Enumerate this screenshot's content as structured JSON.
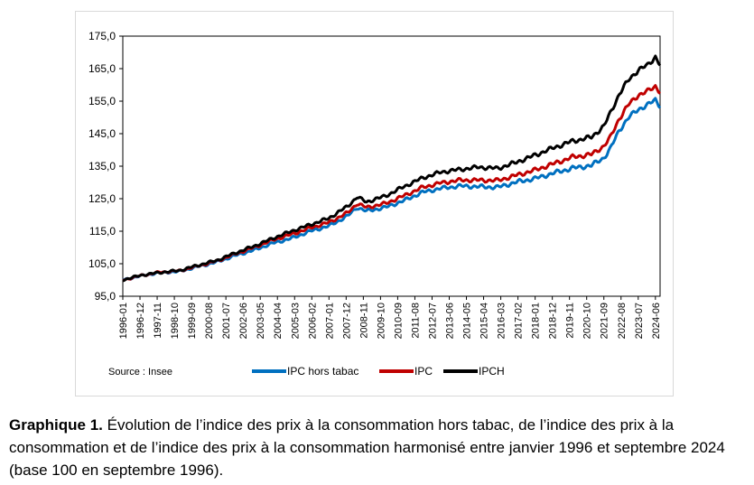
{
  "chart_data": {
    "type": "line",
    "ylim": [
      95,
      175
    ],
    "yticks": [
      "95,0",
      "105,0",
      "115,0",
      "125,0",
      "135,0",
      "145,0",
      "155,0",
      "165,0",
      "175,0"
    ],
    "x_tick_labels": [
      "1996-01",
      "1996-12",
      "1997-11",
      "1998-10",
      "1999-09",
      "2000-08",
      "2001-07",
      "2002-06",
      "2003-05",
      "2004-04",
      "2005-03",
      "2006-02",
      "2007-01",
      "2007-12",
      "2008-11",
      "2009-10",
      "2010-09",
      "2011-08",
      "2012-07",
      "2013-06",
      "2014-05",
      "2015-04",
      "2016-03",
      "2017-02",
      "2018-01",
      "2018-12",
      "2019-11",
      "2020-10",
      "2021-09",
      "2022-08",
      "2023-07",
      "2024-06"
    ],
    "x_range": [
      "1996-01",
      "2024-09"
    ],
    "grid": false,
    "legend_position": "bottom",
    "source": "Source : Insee",
    "series": [
      {
        "name": "IPC hors tabac",
        "color": "#0070c0",
        "points": [
          [
            "1996-01",
            100.0
          ],
          [
            "1997-01",
            101.3
          ],
          [
            "1998-01",
            102.3
          ],
          [
            "1999-01",
            102.6
          ],
          [
            "2000-01",
            104.1
          ],
          [
            "2001-01",
            105.5
          ],
          [
            "2002-01",
            107.5
          ],
          [
            "2003-01",
            109.2
          ],
          [
            "2004-01",
            111.3
          ],
          [
            "2005-01",
            112.8
          ],
          [
            "2006-01",
            115.0
          ],
          [
            "2007-01",
            116.6
          ],
          [
            "2008-01",
            119.7
          ],
          [
            "2008-07",
            122.3
          ],
          [
            "2009-01",
            121.2
          ],
          [
            "2010-01",
            122.3
          ],
          [
            "2011-01",
            124.4
          ],
          [
            "2012-01",
            127.0
          ],
          [
            "2013-01",
            128.2
          ],
          [
            "2014-01",
            128.9
          ],
          [
            "2015-01",
            128.7
          ],
          [
            "2016-01",
            128.5
          ],
          [
            "2017-01",
            130.1
          ],
          [
            "2018-01",
            131.2
          ],
          [
            "2019-01",
            132.9
          ],
          [
            "2020-01",
            134.4
          ],
          [
            "2021-01",
            135.2
          ],
          [
            "2021-09",
            137.6
          ],
          [
            "2022-01",
            140.2
          ],
          [
            "2022-07",
            146.2
          ],
          [
            "2023-01",
            150.0
          ],
          [
            "2023-07",
            152.5
          ],
          [
            "2024-01",
            153.8
          ],
          [
            "2024-06",
            155.4
          ],
          [
            "2024-09",
            153.6
          ]
        ]
      },
      {
        "name": "IPC",
        "color": "#c00000",
        "points": [
          [
            "1996-01",
            100.0
          ],
          [
            "1997-01",
            101.4
          ],
          [
            "1998-01",
            102.4
          ],
          [
            "1999-01",
            102.8
          ],
          [
            "2000-01",
            104.3
          ],
          [
            "2001-01",
            105.8
          ],
          [
            "2002-01",
            108.0
          ],
          [
            "2003-01",
            110.0
          ],
          [
            "2004-01",
            112.3
          ],
          [
            "2005-01",
            114.0
          ],
          [
            "2006-01",
            116.0
          ],
          [
            "2007-01",
            117.7
          ],
          [
            "2008-01",
            120.7
          ],
          [
            "2008-07",
            123.5
          ],
          [
            "2009-01",
            122.3
          ],
          [
            "2010-01",
            123.5
          ],
          [
            "2011-01",
            125.9
          ],
          [
            "2012-01",
            128.5
          ],
          [
            "2013-01",
            129.9
          ],
          [
            "2014-01",
            130.7
          ],
          [
            "2015-01",
            130.7
          ],
          [
            "2016-01",
            130.6
          ],
          [
            "2017-01",
            132.2
          ],
          [
            "2018-01",
            133.8
          ],
          [
            "2019-01",
            135.8
          ],
          [
            "2020-01",
            137.8
          ],
          [
            "2021-01",
            138.6
          ],
          [
            "2021-09",
            141.2
          ],
          [
            "2022-01",
            143.7
          ],
          [
            "2022-07",
            149.8
          ],
          [
            "2023-01",
            154.0
          ],
          [
            "2023-07",
            156.9
          ],
          [
            "2024-01",
            158.0
          ],
          [
            "2024-06",
            159.6
          ],
          [
            "2024-09",
            157.9
          ]
        ]
      },
      {
        "name": "IPCH",
        "color": "#000000",
        "points": [
          [
            "1996-01",
            100.0
          ],
          [
            "1997-01",
            101.5
          ],
          [
            "1998-01",
            102.3
          ],
          [
            "1999-01",
            102.9
          ],
          [
            "2000-01",
            104.5
          ],
          [
            "2001-01",
            106.0
          ],
          [
            "2002-01",
            108.3
          ],
          [
            "2003-01",
            110.4
          ],
          [
            "2004-01",
            112.8
          ],
          [
            "2005-01",
            115.0
          ],
          [
            "2006-01",
            117.0
          ],
          [
            "2007-01",
            119.0
          ],
          [
            "2008-01",
            122.7
          ],
          [
            "2008-07",
            125.5
          ],
          [
            "2009-01",
            124.0
          ],
          [
            "2010-01",
            125.8
          ],
          [
            "2011-01",
            128.7
          ],
          [
            "2012-01",
            131.4
          ],
          [
            "2013-01",
            133.2
          ],
          [
            "2014-01",
            134.0
          ],
          [
            "2015-01",
            134.7
          ],
          [
            "2016-01",
            134.3
          ],
          [
            "2017-01",
            136.2
          ],
          [
            "2018-01",
            138.4
          ],
          [
            "2019-01",
            140.7
          ],
          [
            "2020-01",
            142.7
          ],
          [
            "2021-01",
            143.9
          ],
          [
            "2021-09",
            147.3
          ],
          [
            "2022-01",
            151.2
          ],
          [
            "2022-07",
            157.3
          ],
          [
            "2023-01",
            161.6
          ],
          [
            "2023-07",
            164.6
          ],
          [
            "2024-01",
            166.0
          ],
          [
            "2024-06",
            168.7
          ],
          [
            "2024-09",
            166.2
          ]
        ]
      }
    ]
  },
  "caption": {
    "label": "Graphique 1.",
    "text": " Évolution de l’indice des prix à la consommation hors tabac, de l’indice des prix à la consommation et de l’indice des prix à la consommation harmonisé entre janvier 1996 et septembre 2024 (base 100 en septembre 1996)."
  }
}
